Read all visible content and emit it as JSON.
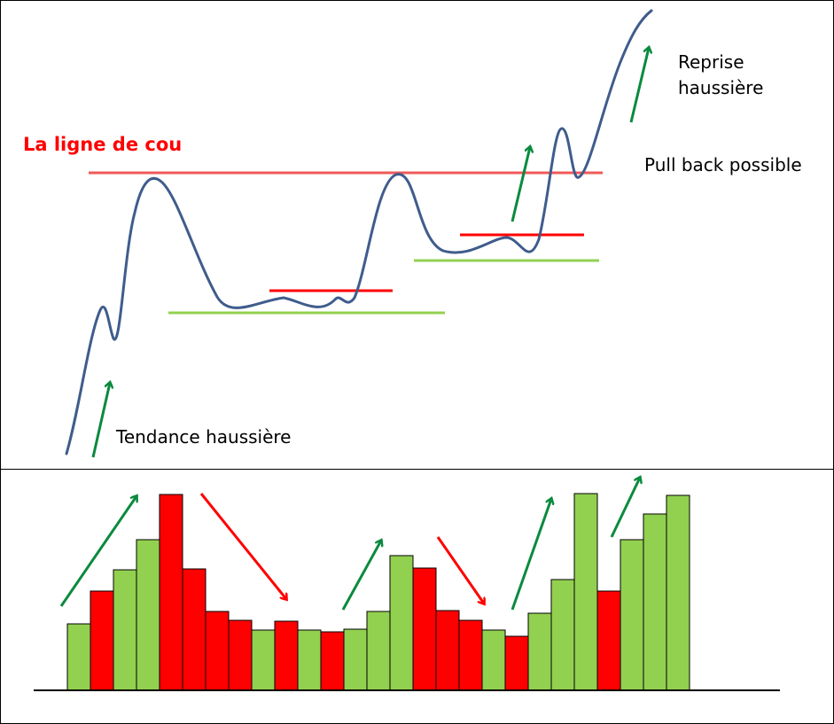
{
  "labels": {
    "neckline": "La ligne de cou",
    "uptrend": "Tendance haussière",
    "pullback": "Pull back possible",
    "resume_line1": "Reprise",
    "resume_line2": "haussière"
  },
  "colors": {
    "price": "#3F5C8C",
    "neckline": "#F05A5A",
    "neckline_text": "#FF0000",
    "support": "#92D050",
    "resistance": "#FF0000",
    "up_arrow": "#0B8A3E",
    "down_arrow": "#FF0000",
    "bar_up": "#92D050",
    "bar_down": "#FF0000"
  },
  "volume": {
    "bars": [
      {
        "value": 75,
        "dir": "up"
      },
      {
        "value": 112,
        "dir": "down"
      },
      {
        "value": 136,
        "dir": "up"
      },
      {
        "value": 170,
        "dir": "up"
      },
      {
        "value": 221,
        "dir": "down"
      },
      {
        "value": 137,
        "dir": "down"
      },
      {
        "value": 89,
        "dir": "down"
      },
      {
        "value": 79,
        "dir": "down"
      },
      {
        "value": 68,
        "dir": "up"
      },
      {
        "value": 78,
        "dir": "down"
      },
      {
        "value": 68,
        "dir": "up"
      },
      {
        "value": 66,
        "dir": "down"
      },
      {
        "value": 69,
        "dir": "up"
      },
      {
        "value": 89,
        "dir": "up"
      },
      {
        "value": 152,
        "dir": "up"
      },
      {
        "value": 138,
        "dir": "down"
      },
      {
        "value": 90,
        "dir": "down"
      },
      {
        "value": 79,
        "dir": "down"
      },
      {
        "value": 68,
        "dir": "up"
      },
      {
        "value": 61,
        "dir": "down"
      },
      {
        "value": 87,
        "dir": "up"
      },
      {
        "value": 125,
        "dir": "up"
      },
      {
        "value": 222,
        "dir": "up"
      },
      {
        "value": 112,
        "dir": "down"
      },
      {
        "value": 170,
        "dir": "up"
      },
      {
        "value": 199,
        "dir": "up"
      },
      {
        "value": 220,
        "dir": "up"
      }
    ]
  }
}
